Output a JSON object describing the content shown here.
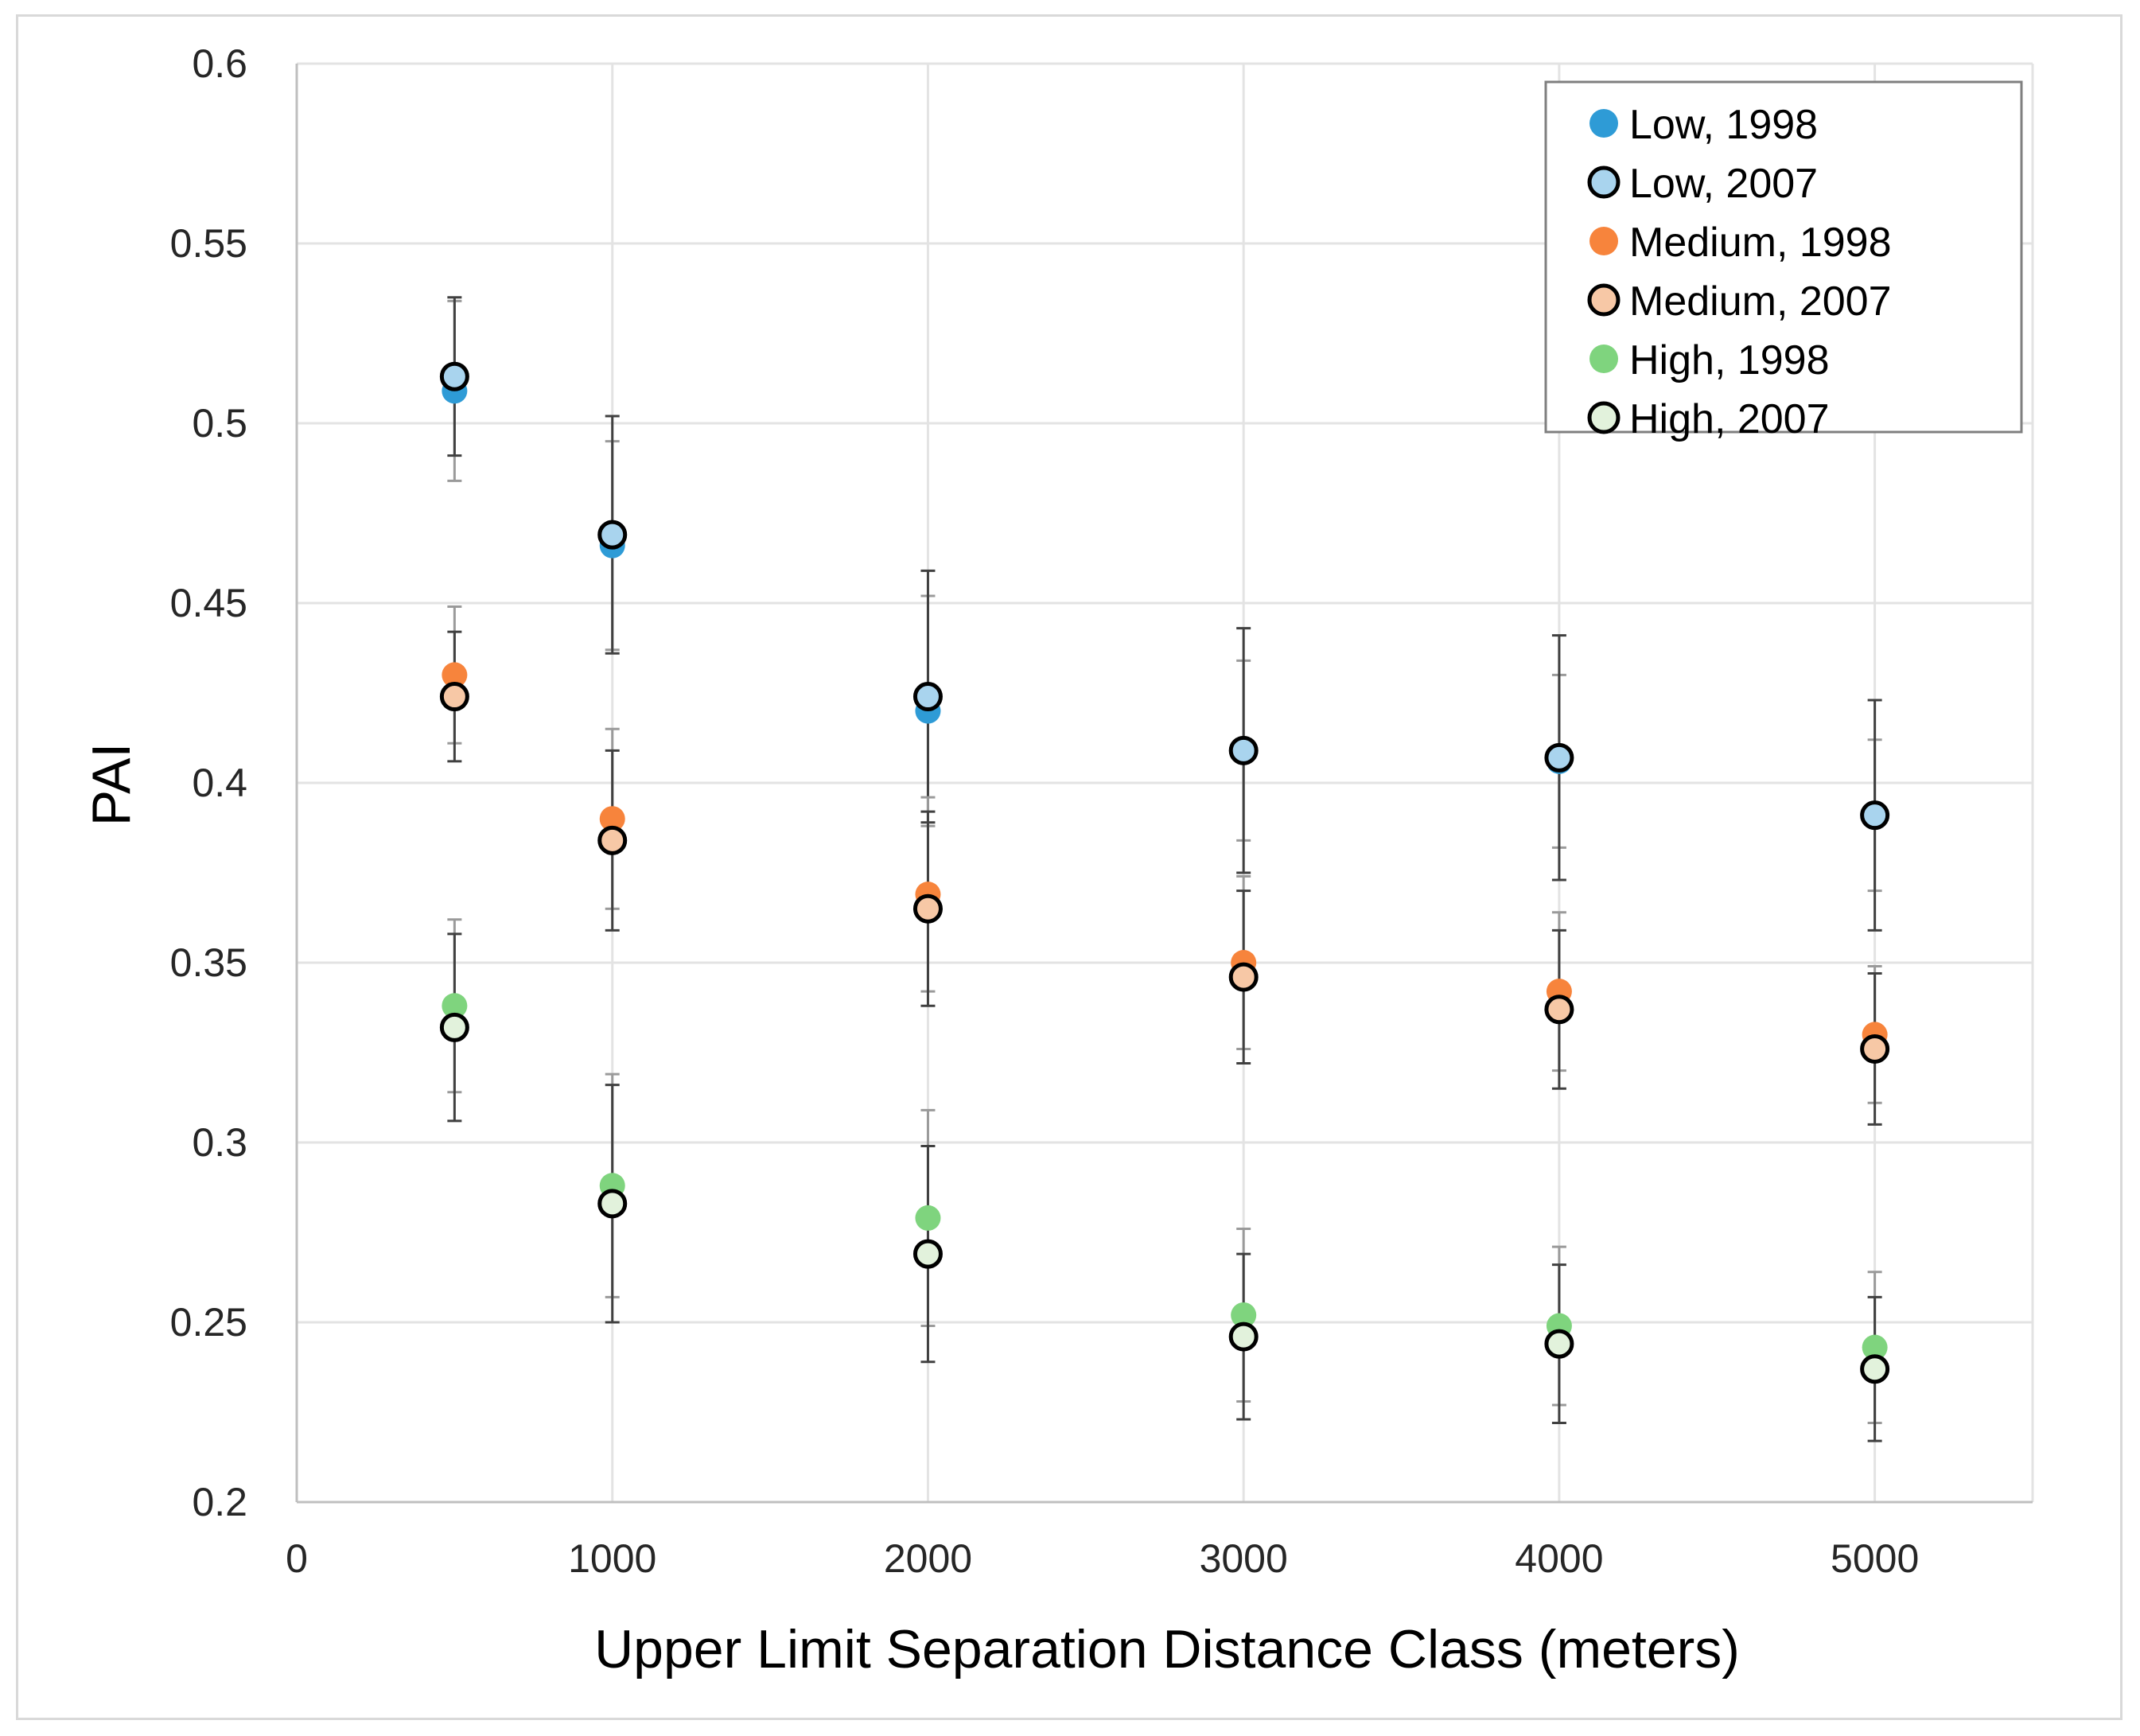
{
  "chart_data": {
    "type": "scatter",
    "title": "",
    "xlabel": "Upper Limit Separation Distance Class (meters)",
    "ylabel": "PAI",
    "xlim": [
      0,
      5500
    ],
    "ylim": [
      0.2,
      0.6
    ],
    "grid": true,
    "legend_position": "top-right",
    "x_ticks": [
      0,
      1000,
      2000,
      3000,
      4000,
      5000
    ],
    "x_tick_labels": [
      "0",
      "1000",
      "2000",
      "3000",
      "4000",
      "5000"
    ],
    "y_ticks": [
      0.2,
      0.25,
      0.3,
      0.35,
      0.4,
      0.45,
      0.5,
      0.55,
      0.6
    ],
    "y_tick_labels": [
      "0.2",
      "0.25",
      "0.3",
      "0.35",
      "0.4",
      "0.45",
      "0.5",
      "0.55",
      "0.6"
    ],
    "x": [
      500,
      1000,
      2000,
      3000,
      4000,
      5000
    ],
    "series": [
      {
        "name": "Low, 1998",
        "color": "#2e9bd6",
        "outlined": false,
        "values": [
          0.509,
          0.466,
          0.42,
          0.409,
          0.406,
          0.391
        ],
        "errors": [
          0.025,
          0.029,
          0.032,
          0.025,
          0.024,
          0.021
        ]
      },
      {
        "name": "Low, 2007",
        "color": "#a9d4ee",
        "outlined": true,
        "values": [
          0.513,
          0.469,
          0.424,
          0.409,
          0.407,
          0.391
        ],
        "errors": [
          0.022,
          0.033,
          0.035,
          0.034,
          0.034,
          0.032
        ]
      },
      {
        "name": "Medium, 1998",
        "color": "#f7843c",
        "outlined": false,
        "values": [
          0.43,
          0.39,
          0.369,
          0.35,
          0.342,
          0.33
        ],
        "errors": [
          0.019,
          0.025,
          0.027,
          0.024,
          0.022,
          0.019
        ]
      },
      {
        "name": "Medium, 2007",
        "color": "#f7c8a6",
        "outlined": true,
        "values": [
          0.424,
          0.384,
          0.365,
          0.346,
          0.337,
          0.326
        ],
        "errors": [
          0.018,
          0.025,
          0.027,
          0.024,
          0.022,
          0.021
        ]
      },
      {
        "name": "High, 1998",
        "color": "#7fd47e",
        "outlined": false,
        "values": [
          0.338,
          0.288,
          0.279,
          0.252,
          0.249,
          0.243
        ],
        "errors": [
          0.024,
          0.031,
          0.03,
          0.024,
          0.022,
          0.021
        ]
      },
      {
        "name": "High, 2007",
        "color": "#e2f2dc",
        "outlined": true,
        "values": [
          0.332,
          0.283,
          0.269,
          0.246,
          0.244,
          0.237
        ],
        "errors": [
          0.026,
          0.033,
          0.03,
          0.023,
          0.022,
          0.02
        ]
      }
    ]
  }
}
